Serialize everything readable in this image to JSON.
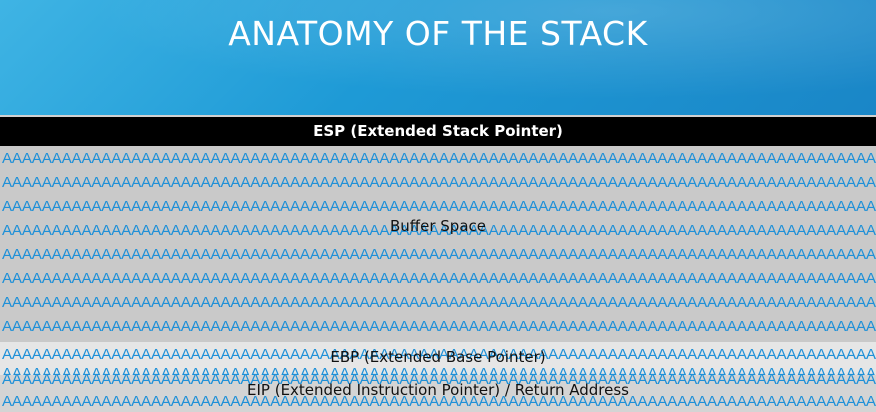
{
  "slide": {
    "title": "ANATOMY OF THE STACK"
  },
  "stack": {
    "esp_label": "ESP (Extended Stack Pointer)",
    "buffer_label": "Buffer Space",
    "ebp_label": "EBP (Extended Base Pointer)",
    "eip_label": "EIP (Extended Instruction Pointer) / Return Address",
    "fill_text": "AAAAAAAAAAAAAAAAAAAAAAAAAAAAAAAAAAAAAAAAAAAAAAAAAAAAAAAAAAAAAAAAAAAAAAAAAAAAAAAAAAAAAAAAAA"
  },
  "colors": {
    "header_blue": "#1e9ad6",
    "fill_text_blue": "#1e90d8",
    "esp_bar": "#000000",
    "buffer_gray": "#c9c9c9",
    "ebp_gray": "#e6e6e6",
    "eip_gray": "#d4d4d4"
  }
}
